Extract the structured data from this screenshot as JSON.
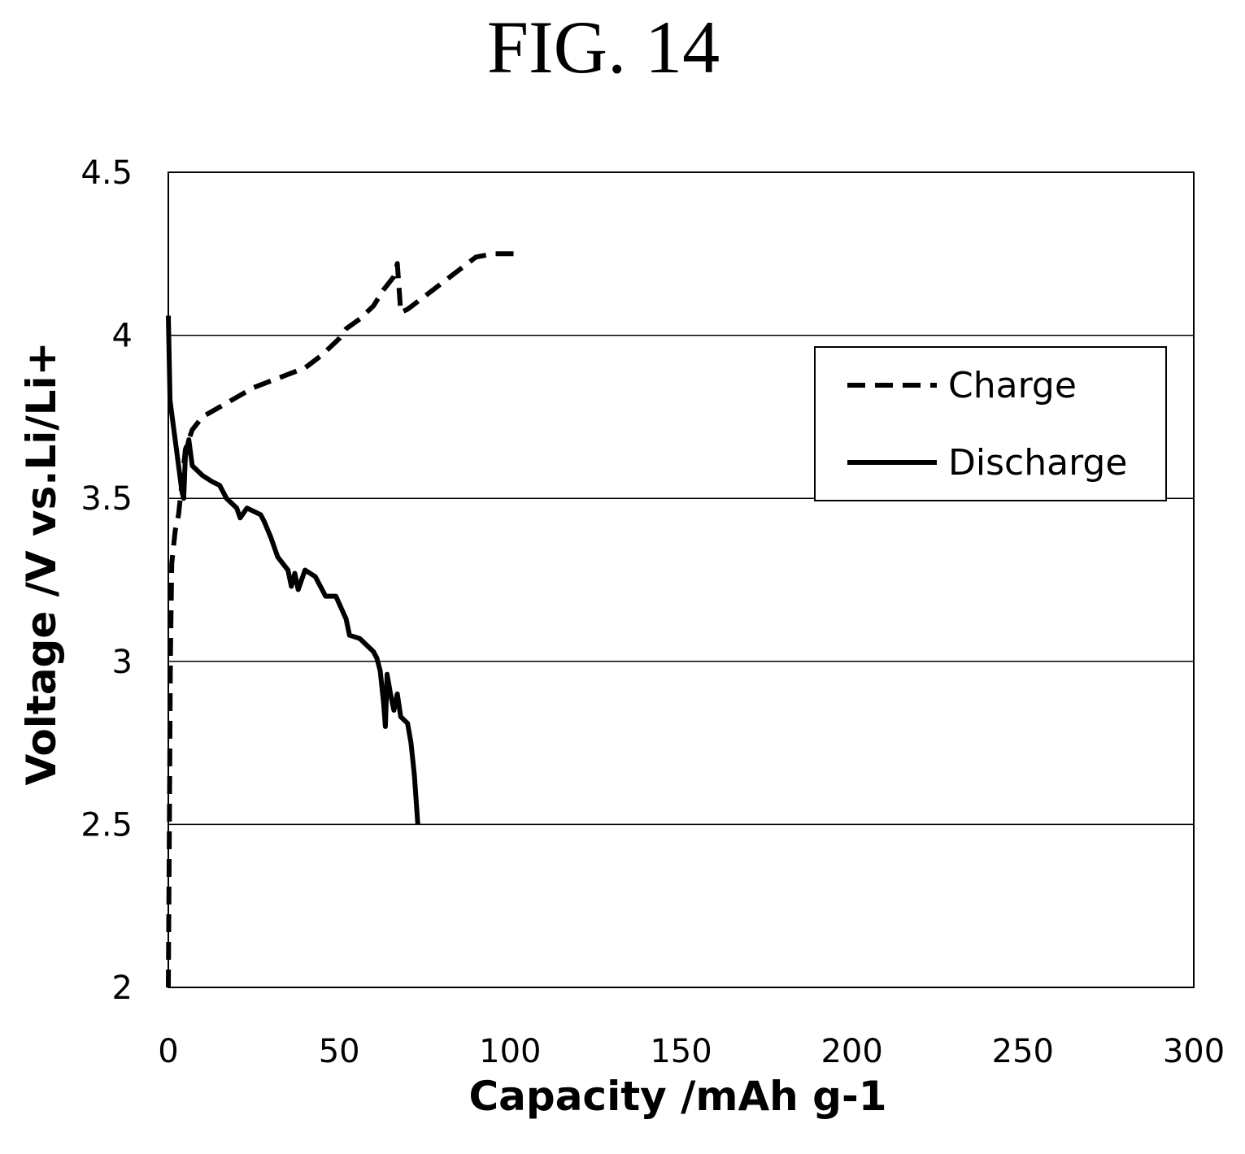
{
  "figure_label": "FIG. 14",
  "chart_data": {
    "type": "line",
    "xlabel": "Capacity /mAh g-1",
    "ylabel": "Voltage /V vs.Li/Li+",
    "xlim": [
      0,
      300
    ],
    "ylim": [
      2,
      4.5
    ],
    "x_ticks": [
      "0",
      "50",
      "100",
      "150",
      "200",
      "250",
      "300"
    ],
    "y_ticks": [
      "2",
      "2.5",
      "3",
      "3.5",
      "4",
      "4.5"
    ],
    "grid": "horizontal",
    "legend_position": "right",
    "series": [
      {
        "name": "Charge",
        "style": "dashed",
        "color": "#000000",
        "points": [
          [
            0,
            2.0
          ],
          [
            0.3,
            2.5
          ],
          [
            0.6,
            3.0
          ],
          [
            1.0,
            3.3
          ],
          [
            2.0,
            3.4
          ],
          [
            3.0,
            3.45
          ],
          [
            4.0,
            3.55
          ],
          [
            5.0,
            3.65
          ],
          [
            7.0,
            3.71
          ],
          [
            10,
            3.75
          ],
          [
            15,
            3.78
          ],
          [
            20,
            3.81
          ],
          [
            25,
            3.84
          ],
          [
            30,
            3.86
          ],
          [
            35,
            3.88
          ],
          [
            40,
            3.9
          ],
          [
            45,
            3.94
          ],
          [
            50,
            3.99
          ],
          [
            52,
            4.02
          ],
          [
            56,
            4.05
          ],
          [
            60,
            4.09
          ],
          [
            63,
            4.14
          ],
          [
            66,
            4.18
          ],
          [
            67,
            4.22
          ],
          [
            68,
            4.07
          ],
          [
            70,
            4.08
          ],
          [
            75,
            4.12
          ],
          [
            80,
            4.16
          ],
          [
            85,
            4.2
          ],
          [
            90,
            4.24
          ],
          [
            95,
            4.25
          ],
          [
            103,
            4.25
          ]
        ]
      },
      {
        "name": "Discharge",
        "style": "solid",
        "color": "#000000",
        "points": [
          [
            0,
            4.06
          ],
          [
            0.5,
            3.8
          ],
          [
            2,
            3.68
          ],
          [
            3,
            3.6
          ],
          [
            4,
            3.52
          ],
          [
            4.5,
            3.5
          ],
          [
            5,
            3.63
          ],
          [
            6,
            3.68
          ],
          [
            7,
            3.6
          ],
          [
            10,
            3.57
          ],
          [
            13,
            3.55
          ],
          [
            15,
            3.54
          ],
          [
            17,
            3.5
          ],
          [
            20,
            3.47
          ],
          [
            21,
            3.44
          ],
          [
            23,
            3.47
          ],
          [
            27,
            3.45
          ],
          [
            28,
            3.43
          ],
          [
            30,
            3.38
          ],
          [
            32,
            3.32
          ],
          [
            35,
            3.28
          ],
          [
            36,
            3.23
          ],
          [
            37,
            3.27
          ],
          [
            38,
            3.22
          ],
          [
            40,
            3.28
          ],
          [
            43,
            3.26
          ],
          [
            46,
            3.2
          ],
          [
            49,
            3.2
          ],
          [
            52,
            3.13
          ],
          [
            53,
            3.08
          ],
          [
            56,
            3.07
          ],
          [
            60,
            3.03
          ],
          [
            61,
            3.01
          ],
          [
            62,
            2.97
          ],
          [
            63,
            2.87
          ],
          [
            63.5,
            2.8
          ],
          [
            64,
            2.96
          ],
          [
            65,
            2.9
          ],
          [
            66,
            2.85
          ],
          [
            67,
            2.9
          ],
          [
            68,
            2.83
          ],
          [
            70,
            2.81
          ],
          [
            71,
            2.75
          ],
          [
            72,
            2.65
          ],
          [
            73,
            2.5
          ]
        ]
      }
    ]
  }
}
